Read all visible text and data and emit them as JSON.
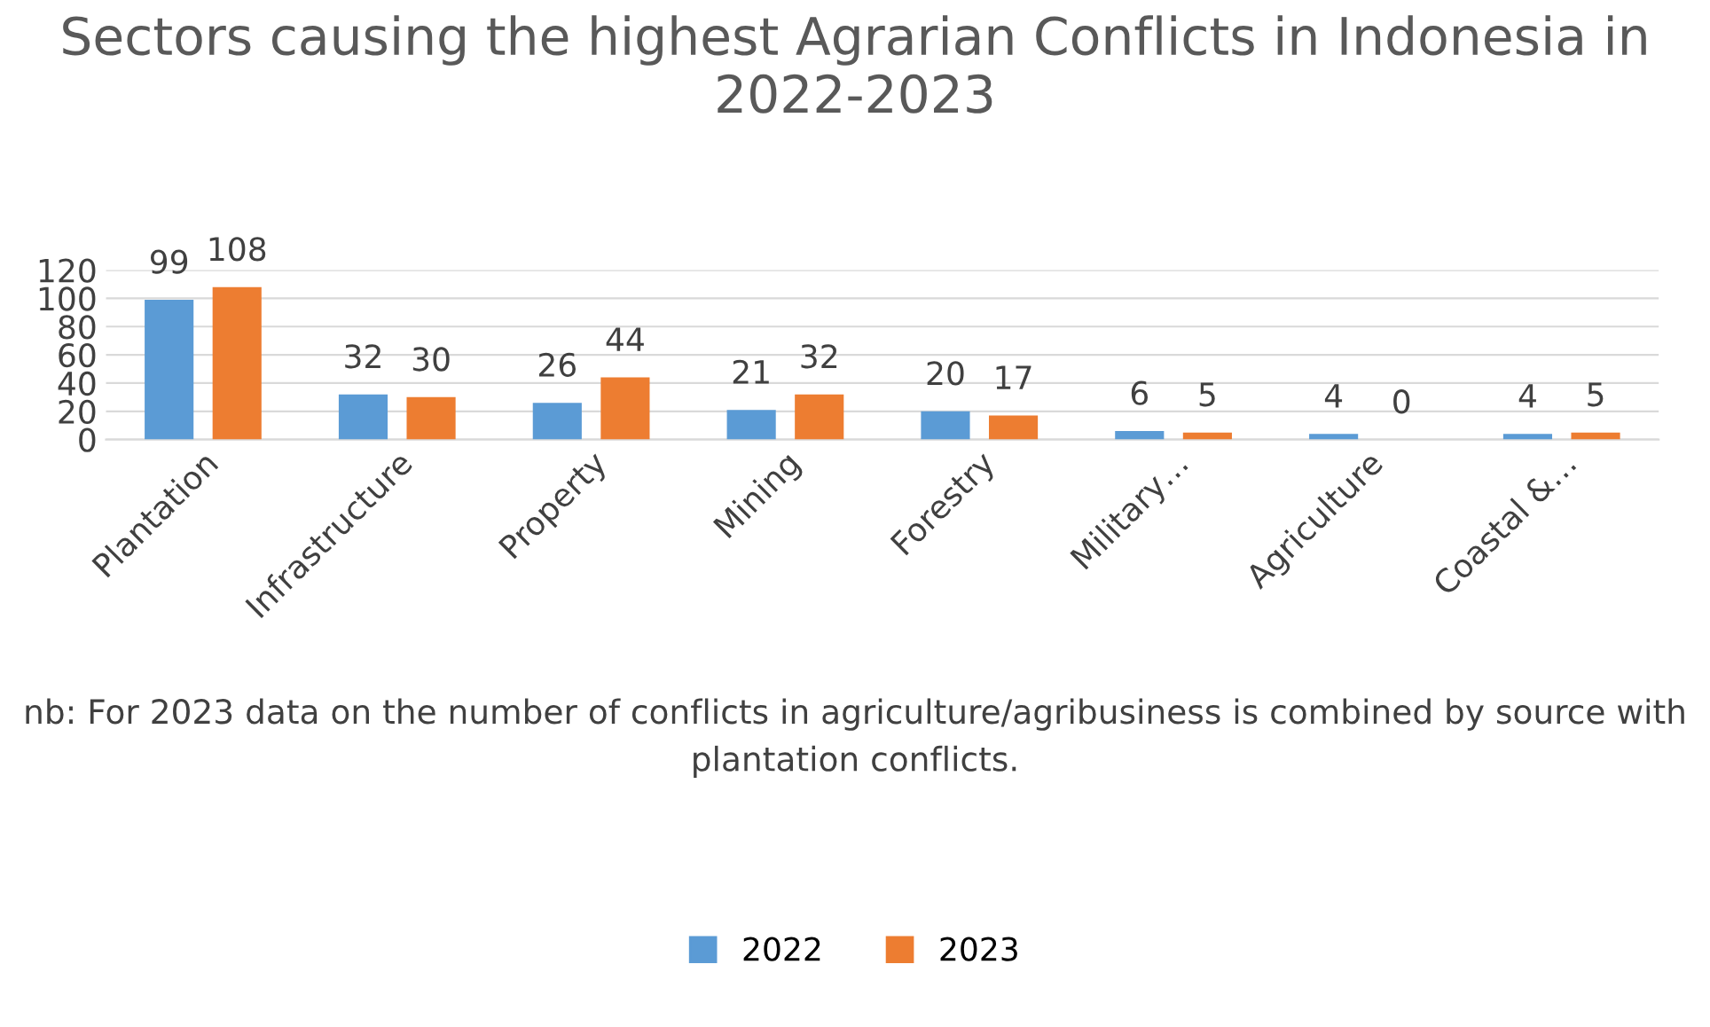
{
  "chart_data": {
    "type": "bar",
    "title": "Sectors causing the highest Agrarian Conflicts in Indonesia in 2022-2023",
    "categories": [
      "Plantation",
      "Infrastructure",
      "Property",
      "Mining",
      "Forestry",
      "Military…",
      "Agriculture",
      "Coastal &…"
    ],
    "series": [
      {
        "name": "2022",
        "color": "#5b9bd5",
        "values": [
          99,
          32,
          26,
          21,
          20,
          6,
          4,
          4
        ]
      },
      {
        "name": "2023",
        "color": "#ed7d31",
        "values": [
          108,
          30,
          44,
          32,
          17,
          5,
          0,
          5
        ]
      }
    ],
    "ylim": [
      0,
      120
    ],
    "yticks": [
      0,
      20,
      40,
      60,
      80,
      100,
      120
    ],
    "grid": "y",
    "data_labels": true,
    "legend": "bottom",
    "annotations": [
      "nb: For 2023 data on the number of conflicts in agriculture/agribusiness is combined by source with plantation conflicts."
    ]
  }
}
